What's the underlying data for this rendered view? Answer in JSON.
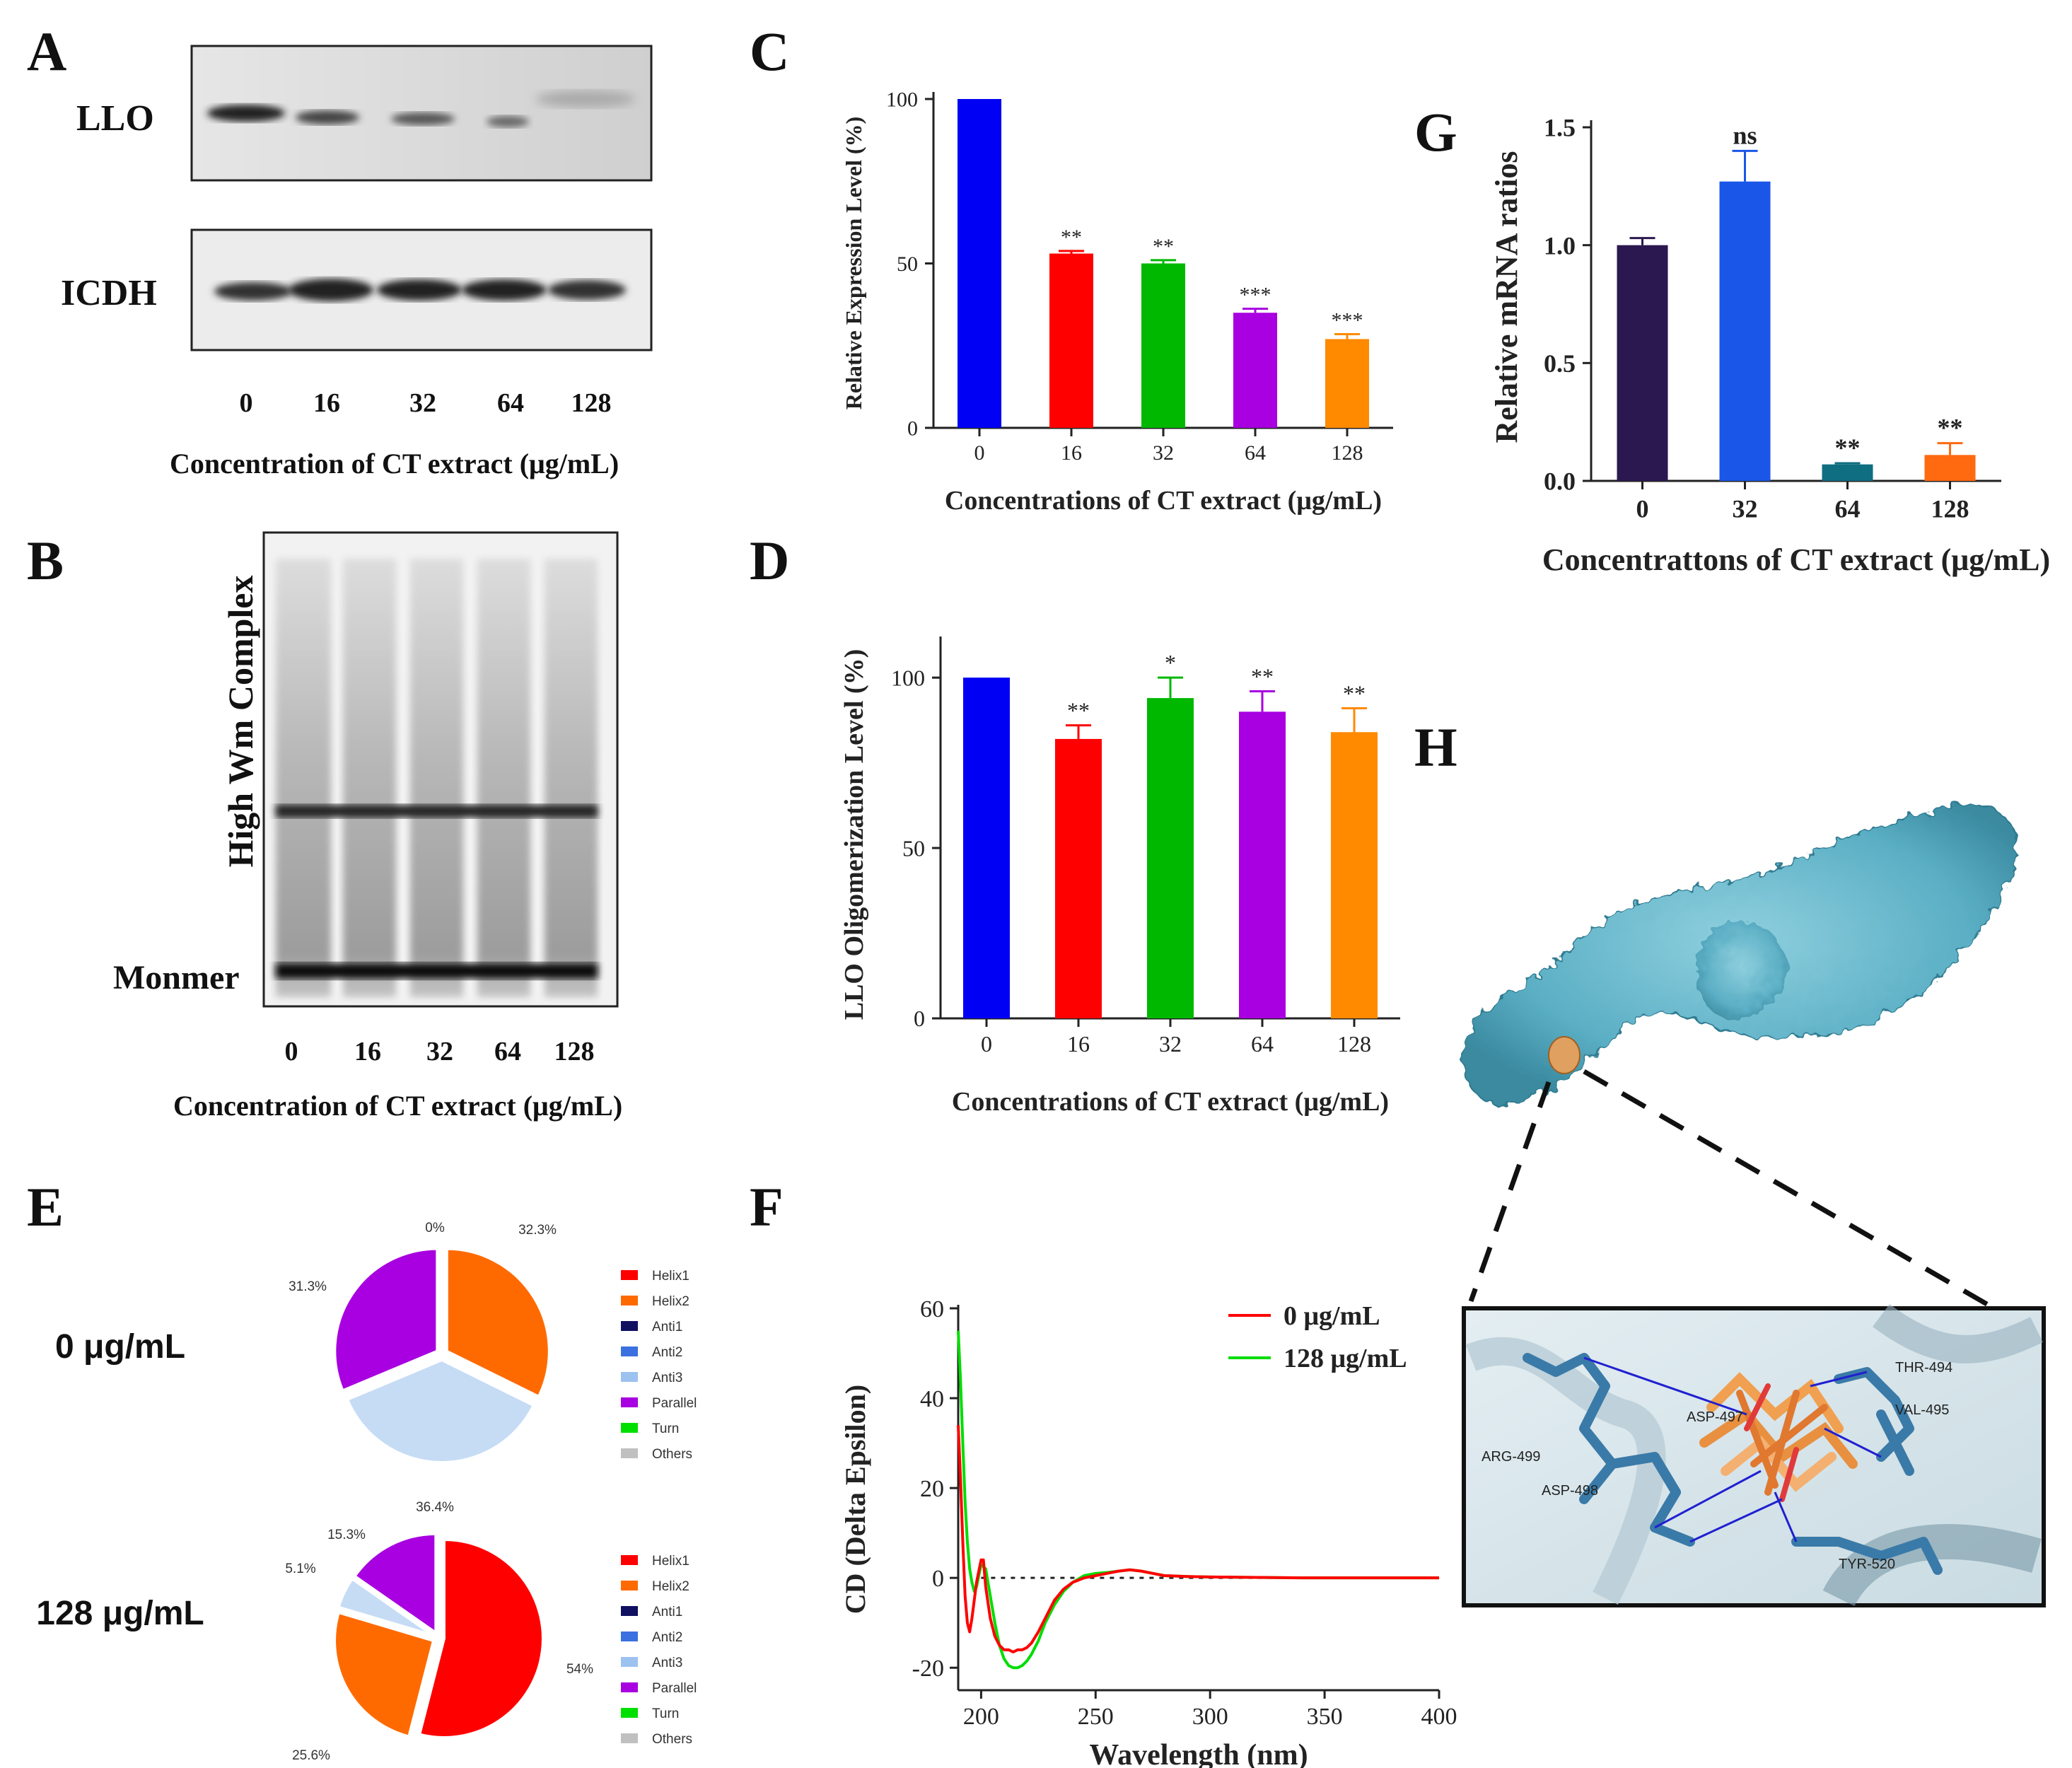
{
  "panels": {
    "A": {
      "letter": "A",
      "band_labels": [
        "LLO",
        "ICDH"
      ],
      "lanes": [
        "0",
        "16",
        "32",
        "64",
        "128"
      ],
      "xlabel": "Concentration of CT extract (μg/mL)"
    },
    "B": {
      "letter": "B",
      "side_label": "High Wm Complex",
      "band_label": "Monmer",
      "lanes": [
        "0",
        "16",
        "32",
        "64",
        "128"
      ],
      "xlabel": "Concentration of CT extract (μg/mL)"
    },
    "C": {
      "letter": "C"
    },
    "D": {
      "letter": "D"
    },
    "E": {
      "letter": "E"
    },
    "F": {
      "letter": "F"
    },
    "G": {
      "letter": "G"
    },
    "H": {
      "letter": "H",
      "residues": [
        "THR-494",
        "VAL-495",
        "ASP-497",
        "ARG-499",
        "ASP-498",
        "TYR-520"
      ]
    }
  },
  "colors": {
    "blue": "#0000f5",
    "red": "#ff0000",
    "green": "#00b800",
    "purple": "#a800e0",
    "orange": "#ff8a00",
    "navy": "#2b1850",
    "brightblue": "#1a56e8",
    "teal": "#0f6e80",
    "orange2": "#ff6a10",
    "protein": "#5fb3c8"
  },
  "chart_data": [
    {
      "id": "C",
      "type": "bar",
      "categories": [
        "0",
        "16",
        "32",
        "64",
        "128"
      ],
      "values": [
        100,
        53,
        50,
        35,
        27
      ],
      "errors": [
        0,
        0.8,
        1,
        1.2,
        1.5
      ],
      "significance": [
        "",
        "**",
        "**",
        "***",
        "***"
      ],
      "ylim": [
        0,
        100
      ],
      "yticks": [
        "0",
        "50",
        "100"
      ],
      "ylabel": "Relative Expression Level (%)",
      "xlabel": "Concentrations of CT extract (μg/mL)"
    },
    {
      "id": "D",
      "type": "bar",
      "categories": [
        "0",
        "16",
        "32",
        "64",
        "128"
      ],
      "values": [
        100,
        82,
        94,
        90,
        84
      ],
      "errors": [
        0,
        4,
        6,
        6,
        7
      ],
      "significance": [
        "",
        "**",
        "*",
        "**",
        "**"
      ],
      "ylim": [
        0,
        110
      ],
      "yticks": [
        "0",
        "50",
        "100"
      ],
      "ylabel": "LLO Oligomerization Level (%)",
      "xlabel": "Concentrations of CT extract (μg/mL)"
    },
    {
      "id": "G",
      "type": "bar",
      "categories": [
        "0",
        "32",
        "64",
        "128"
      ],
      "values": [
        1.0,
        1.27,
        0.07,
        0.11
      ],
      "errors": [
        0.03,
        0.13,
        0.005,
        0.05
      ],
      "significance": [
        "",
        "ns",
        "**",
        "**"
      ],
      "ylim": [
        0,
        1.5
      ],
      "yticks": [
        "0.0",
        "0.5",
        "1.0",
        "1.5"
      ],
      "ylabel": "Relative mRNA ratios",
      "xlabel": "Concentrattons of CT extract (μg/mL)"
    },
    {
      "id": "E1",
      "type": "pie",
      "title": "0 μg/mL",
      "slices": [
        {
          "label": "Helix2",
          "value": 32.3,
          "text": "32.3%",
          "color": "#ff6a00"
        },
        {
          "label": "Anti3",
          "value": 36.4,
          "text": "36.4%",
          "color": "#c6dcf5"
        },
        {
          "label": "Parallel",
          "value": 31.3,
          "text": "31.3%",
          "color": "#a800e0"
        }
      ],
      "zero_label": "0%",
      "legend": [
        "Helix1",
        "Helix2",
        "Anti1",
        "Anti2",
        "Anti3",
        "Parallel",
        "Turn",
        "Others"
      ]
    },
    {
      "id": "E2",
      "type": "pie",
      "title": "128 μg/mL",
      "slices": [
        {
          "label": "Helix1",
          "value": 54,
          "text": "54%",
          "color": "#ff0000"
        },
        {
          "label": "Helix2",
          "value": 25.6,
          "text": "25.6%",
          "color": "#ff6a00"
        },
        {
          "label": "Anti3",
          "value": 5.1,
          "text": "5.1%",
          "color": "#c6dcf5"
        },
        {
          "label": "Parallel",
          "value": 15.3,
          "text": "15.3%",
          "color": "#a800e0"
        }
      ],
      "legend": [
        "Helix1",
        "Helix2",
        "Anti1",
        "Anti2",
        "Anti3",
        "Parallel",
        "Turn",
        "Others"
      ]
    },
    {
      "id": "F",
      "type": "line",
      "xlabel": "Wavelength (nm)",
      "ylabel": "CD (Delta Epsilon)",
      "xlim": [
        190,
        400
      ],
      "ylim": [
        -25,
        60
      ],
      "xticks": [
        "200",
        "250",
        "300",
        "350",
        "400"
      ],
      "yticks": [
        "-20",
        "0",
        "20",
        "40",
        "60"
      ],
      "series": [
        {
          "name": "0 μg/mL",
          "color": "#ff0000",
          "x": [
            190,
            191,
            192,
            193,
            194,
            195,
            196,
            198,
            200,
            201,
            202,
            204,
            206,
            208,
            210,
            212,
            214,
            216,
            218,
            220,
            222,
            225,
            228,
            232,
            236,
            240,
            245,
            250,
            255,
            260,
            265,
            270,
            275,
            280,
            290,
            300,
            320,
            340,
            360,
            380,
            400
          ],
          "y": [
            34,
            22,
            8,
            -4,
            -10,
            -12,
            -9,
            -1,
            4,
            4,
            -2,
            -9,
            -13,
            -15,
            -16,
            -16,
            -16.5,
            -16,
            -16,
            -15.5,
            -14.5,
            -12,
            -9,
            -5,
            -2.5,
            -1,
            0,
            0.5,
            1,
            1.5,
            1.8,
            1.5,
            1,
            0.5,
            0.3,
            0.2,
            0.1,
            0,
            0,
            0,
            0
          ]
        },
        {
          "name": "128 μg/mL",
          "color": "#00dd00",
          "x": [
            190,
            191,
            192,
            193,
            194,
            195,
            196,
            197,
            198,
            200,
            202,
            204,
            206,
            208,
            210,
            212,
            214,
            216,
            218,
            220,
            222,
            225,
            228,
            232,
            236,
            240,
            245,
            250,
            255,
            260,
            265,
            270,
            275,
            280,
            290,
            300,
            320,
            340,
            360,
            380,
            400
          ],
          "y": [
            55,
            44,
            30,
            17,
            8,
            2,
            -1,
            -3,
            -2,
            3,
            2,
            -4,
            -10,
            -15,
            -18,
            -19.5,
            -20,
            -20,
            -19.5,
            -18.5,
            -17,
            -14,
            -10,
            -6,
            -3,
            -1,
            0.5,
            1,
            1.2,
            1.5,
            1.8,
            1.5,
            1,
            0.5,
            0.3,
            0.2,
            0.1,
            0,
            0,
            0,
            0
          ]
        }
      ]
    }
  ]
}
